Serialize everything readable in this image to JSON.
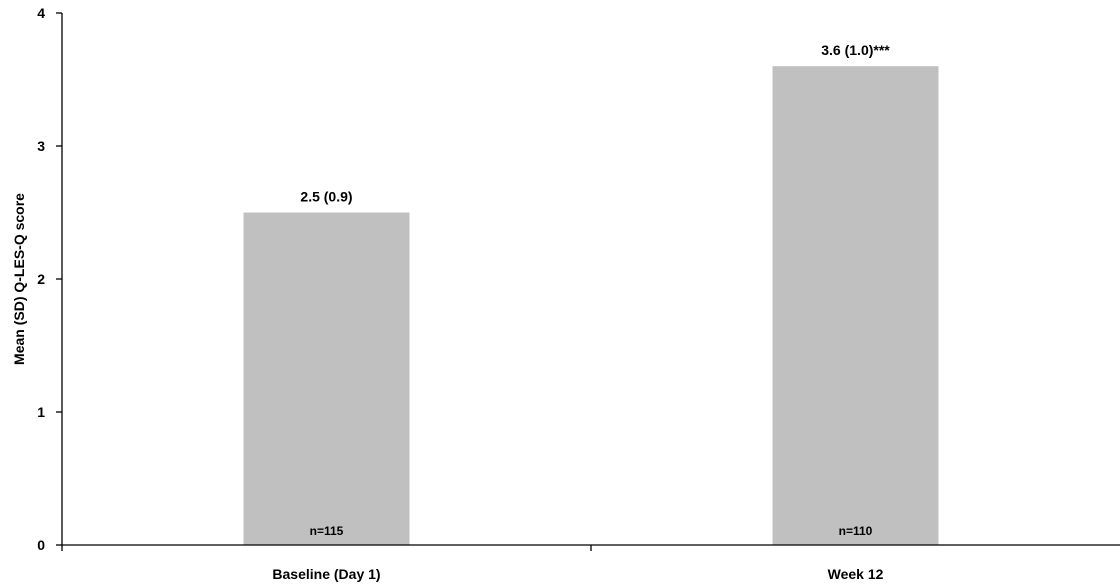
{
  "chart_data": {
    "type": "bar",
    "title": "",
    "xlabel": "",
    "ylabel": "Mean (SD) Q-LES-Q score",
    "ylim": [
      0,
      4
    ],
    "yticks": [
      0,
      1,
      2,
      3,
      4
    ],
    "categories": [
      "Baseline (Day 1)",
      "Week 12"
    ],
    "values": [
      2.5,
      3.6
    ],
    "data_labels": [
      "2.5 (0.9)",
      "3.6 (1.0)***"
    ],
    "sample_sizes": [
      "n=115",
      "n=110"
    ],
    "grid": false,
    "legend": "none",
    "colors": {
      "bar": "#c0c0c0",
      "axis": "#000000",
      "text": "#000000"
    }
  }
}
